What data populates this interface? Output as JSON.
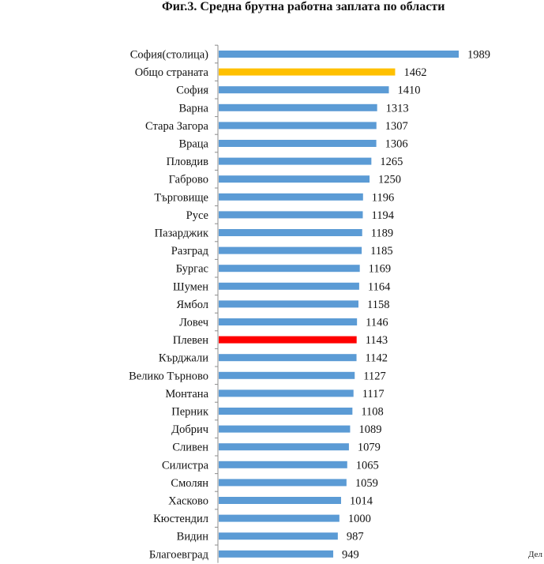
{
  "title": "Фиг.3. Средна брутна работна заплата по области",
  "corner_text": "Дел",
  "colors": {
    "default": "#5b9bd5",
    "highlight_total": "#ffc000",
    "highlight_region": "#ff0000",
    "axis": "#8c8c8c"
  },
  "chart_data": {
    "type": "bar",
    "orientation": "horizontal",
    "title": "Фиг.3. Средна брутна работна заплата по области",
    "xlabel": "",
    "ylabel": "",
    "xlim": [
      0,
      2100
    ],
    "grid": false,
    "data_labels": true,
    "categories": [
      "София(столица)",
      "Общо страната",
      "София",
      "Варна",
      "Стара Загора",
      "Враца",
      "Пловдив",
      "Габрово",
      "Търговище",
      "Русе",
      "Пазарджик",
      "Разград",
      "Бургас",
      "Шумен",
      "Ямбол",
      "Ловеч",
      "Плевен",
      "Кърджали",
      "Велико Търново",
      "Монтана",
      "Перник",
      "Добрич",
      "Сливен",
      "Силистра",
      "Смолян",
      "Хасково",
      "Кюстендил",
      "Видин",
      "Благоевград"
    ],
    "values": [
      1989,
      1462,
      1410,
      1313,
      1307,
      1306,
      1265,
      1250,
      1196,
      1194,
      1189,
      1185,
      1169,
      1164,
      1158,
      1146,
      1143,
      1142,
      1127,
      1117,
      1108,
      1089,
      1079,
      1065,
      1059,
      1014,
      1000,
      987,
      949
    ],
    "bar_colors": [
      "#5b9bd5",
      "#ffc000",
      "#5b9bd5",
      "#5b9bd5",
      "#5b9bd5",
      "#5b9bd5",
      "#5b9bd5",
      "#5b9bd5",
      "#5b9bd5",
      "#5b9bd5",
      "#5b9bd5",
      "#5b9bd5",
      "#5b9bd5",
      "#5b9bd5",
      "#5b9bd5",
      "#5b9bd5",
      "#ff0000",
      "#5b9bd5",
      "#5b9bd5",
      "#5b9bd5",
      "#5b9bd5",
      "#5b9bd5",
      "#5b9bd5",
      "#5b9bd5",
      "#5b9bd5",
      "#5b9bd5",
      "#5b9bd5",
      "#5b9bd5",
      "#5b9bd5"
    ]
  }
}
